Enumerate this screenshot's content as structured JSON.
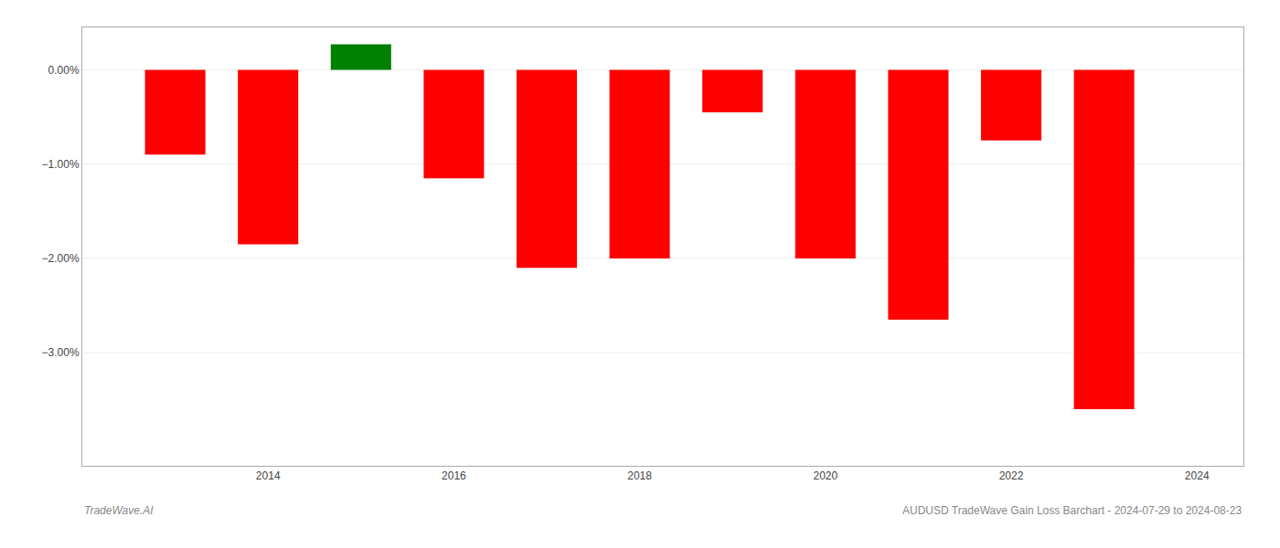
{
  "chart_data": {
    "type": "bar",
    "x": [
      2013,
      2014,
      2015,
      2016,
      2017,
      2018,
      2019,
      2020,
      2021,
      2022,
      2023
    ],
    "values": [
      -0.9,
      -1.85,
      0.27,
      -1.15,
      -2.1,
      -2.0,
      -0.45,
      -2.0,
      -2.65,
      -0.75,
      -3.6
    ],
    "colors": [
      "#ff0000",
      "#ff0000",
      "#008000",
      "#ff0000",
      "#ff0000",
      "#ff0000",
      "#ff0000",
      "#ff0000",
      "#ff0000",
      "#ff0000",
      "#ff0000"
    ],
    "xlim": [
      2012.0,
      2024.5
    ],
    "xticks": [
      2014,
      2016,
      2018,
      2020,
      2022,
      2024
    ],
    "ylim": [
      -4.2,
      0.45
    ],
    "yticks": [
      {
        "value": 0.0,
        "label": "0.00%"
      },
      {
        "value": -1.0,
        "label": "−1.00%"
      },
      {
        "value": -2.0,
        "label": "−2.00%"
      },
      {
        "value": -3.0,
        "label": "−3.00%"
      }
    ],
    "grid": true,
    "annotations": [
      "TradeWave.AI",
      "AUDUSD TradeWave Gain Loss Barchart - 2024-07-29 to 2024-08-23"
    ]
  }
}
